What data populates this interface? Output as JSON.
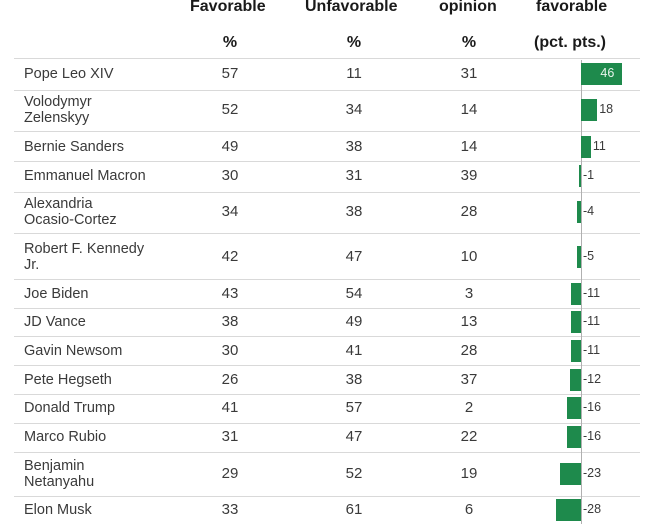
{
  "headers": {
    "favorable": "Favorable",
    "favorable_unit": "%",
    "unfavorable": "Unfavorable",
    "unfavorable_unit": "%",
    "opinion": "opinion",
    "opinion_unit": "%",
    "net": "favorable",
    "net_unit": "(pct. pts.)"
  },
  "chart_data": {
    "type": "table",
    "columns": [
      "Favorable %",
      "Unfavorable %",
      "opinion %",
      "favorable (pct. pts.)"
    ],
    "rows": [
      {
        "name": "Pope Leo XIV",
        "fav": "57",
        "unfav": "11",
        "opinion": "31",
        "net": 46,
        "net_label": "46"
      },
      {
        "name": "Volodymyr\nZelenskyy",
        "fav": "52",
        "unfav": "34",
        "opinion": "14",
        "net": 18,
        "net_label": "18"
      },
      {
        "name": "Bernie Sanders",
        "fav": "49",
        "unfav": "38",
        "opinion": "14",
        "net": 11,
        "net_label": "11"
      },
      {
        "name": "Emmanuel Macron",
        "fav": "30",
        "unfav": "31",
        "opinion": "39",
        "net": -1,
        "net_label": "-1"
      },
      {
        "name": "Alexandria\nOcasio-Cortez",
        "fav": "34",
        "unfav": "38",
        "opinion": "28",
        "net": -4,
        "net_label": "-4"
      },
      {
        "name": "Robert F. Kennedy\nJr.",
        "fav": "42",
        "unfav": "47",
        "opinion": "10",
        "net": -5,
        "net_label": "-5"
      },
      {
        "name": "Joe Biden",
        "fav": "43",
        "unfav": "54",
        "opinion": "3",
        "net": -11,
        "net_label": "-11"
      },
      {
        "name": "JD Vance",
        "fav": "38",
        "unfav": "49",
        "opinion": "13",
        "net": -11,
        "net_label": "-11"
      },
      {
        "name": "Gavin Newsom",
        "fav": "30",
        "unfav": "41",
        "opinion": "28",
        "net": -11,
        "net_label": "-11"
      },
      {
        "name": "Pete Hegseth",
        "fav": "26",
        "unfav": "38",
        "opinion": "37",
        "net": -12,
        "net_label": "-12"
      },
      {
        "name": "Donald Trump",
        "fav": "41",
        "unfav": "57",
        "opinion": "2",
        "net": -16,
        "net_label": "-16"
      },
      {
        "name": "Marco Rubio",
        "fav": "31",
        "unfav": "47",
        "opinion": "22",
        "net": -16,
        "net_label": "-16"
      },
      {
        "name": "Benjamin\nNetanyahu",
        "fav": "29",
        "unfav": "52",
        "opinion": "19",
        "net": -23,
        "net_label": "-23"
      },
      {
        "name": "Elon Musk",
        "fav": "33",
        "unfav": "61",
        "opinion": "6",
        "net": -28,
        "net_label": "-28"
      }
    ],
    "bar_color": "#1e8a4c"
  }
}
